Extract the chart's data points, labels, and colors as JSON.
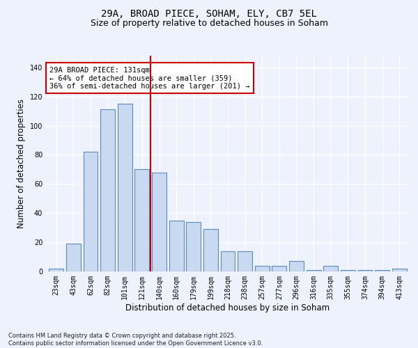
{
  "title_line1": "29A, BROAD PIECE, SOHAM, ELY, CB7 5EL",
  "title_line2": "Size of property relative to detached houses in Soham",
  "xlabel": "Distribution of detached houses by size in Soham",
  "ylabel": "Number of detached properties",
  "categories": [
    "23sqm",
    "43sqm",
    "62sqm",
    "82sqm",
    "101sqm",
    "121sqm",
    "140sqm",
    "160sqm",
    "179sqm",
    "199sqm",
    "218sqm",
    "238sqm",
    "257sqm",
    "277sqm",
    "296sqm",
    "316sqm",
    "335sqm",
    "355sqm",
    "374sqm",
    "394sqm",
    "413sqm"
  ],
  "values": [
    2,
    19,
    82,
    111,
    115,
    70,
    68,
    35,
    34,
    29,
    14,
    14,
    4,
    4,
    7,
    1,
    4,
    1,
    1,
    1,
    2
  ],
  "bar_color": "#c9d9f0",
  "bar_edge_color": "#5a8abf",
  "vline_x": 5.5,
  "vline_color": "#cc0000",
  "annotation_text": "29A BROAD PIECE: 131sqm\n← 64% of detached houses are smaller (359)\n36% of semi-detached houses are larger (201) →",
  "annotation_box_color": "#ffffff",
  "annotation_box_edge_color": "#cc0000",
  "ylim": [
    0,
    148
  ],
  "yticks": [
    0,
    20,
    40,
    60,
    80,
    100,
    120,
    140
  ],
  "footnote": "Contains HM Land Registry data © Crown copyright and database right 2025.\nContains public sector information licensed under the Open Government Licence v3.0.",
  "bg_color": "#eef2fc",
  "grid_color": "#ffffff",
  "title_fontsize": 10,
  "subtitle_fontsize": 9,
  "axis_label_fontsize": 8.5,
  "tick_fontsize": 7,
  "annotation_fontsize": 7.5,
  "footnote_fontsize": 6
}
